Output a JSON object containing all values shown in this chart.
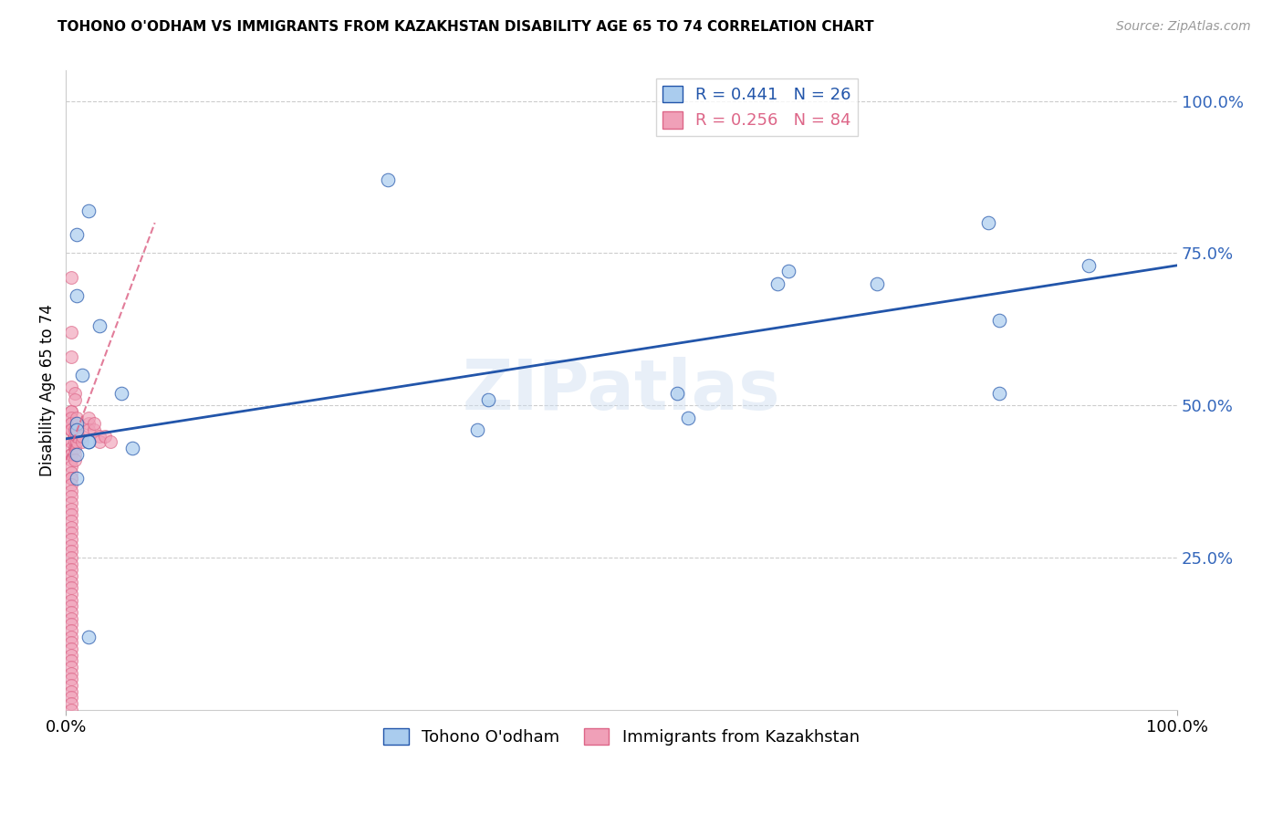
{
  "title": "TOHONO O'ODHAM VS IMMIGRANTS FROM KAZAKHSTAN DISABILITY AGE 65 TO 74 CORRELATION CHART",
  "source": "Source: ZipAtlas.com",
  "ylabel": "Disability Age 65 to 74",
  "y_tick_positions_right": [
    1.0,
    0.75,
    0.5,
    0.25
  ],
  "xlim": [
    0.0,
    1.0
  ],
  "ylim": [
    0.0,
    1.05
  ],
  "color_blue": "#aaccee",
  "color_pink": "#f0a0b8",
  "line_blue": "#2255aa",
  "line_pink": "#dd6688",
  "watermark": "ZIPatlas",
  "tohono_x": [
    0.02,
    0.01,
    0.01,
    0.03,
    0.015,
    0.05,
    0.01,
    0.29,
    0.38,
    0.56,
    0.64,
    0.73,
    0.83,
    0.92,
    0.84,
    0.65,
    0.55,
    0.84,
    0.02,
    0.37,
    0.02,
    0.06,
    0.01,
    0.01,
    0.01,
    0.02
  ],
  "tohono_y": [
    0.82,
    0.78,
    0.68,
    0.63,
    0.55,
    0.52,
    0.47,
    0.87,
    0.51,
    0.48,
    0.7,
    0.7,
    0.8,
    0.73,
    0.64,
    0.72,
    0.52,
    0.52,
    0.44,
    0.46,
    0.44,
    0.43,
    0.46,
    0.42,
    0.38,
    0.12
  ],
  "kaz_x": [
    0.005,
    0.005,
    0.005,
    0.005,
    0.005,
    0.005,
    0.005,
    0.005,
    0.005,
    0.005,
    0.005,
    0.005,
    0.005,
    0.005,
    0.005,
    0.005,
    0.005,
    0.005,
    0.005,
    0.005,
    0.005,
    0.005,
    0.005,
    0.005,
    0.005,
    0.005,
    0.005,
    0.005,
    0.005,
    0.005,
    0.005,
    0.005,
    0.005,
    0.005,
    0.005,
    0.005,
    0.005,
    0.005,
    0.005,
    0.005,
    0.005,
    0.005,
    0.005,
    0.005,
    0.005,
    0.005,
    0.005,
    0.005,
    0.005,
    0.005,
    0.005,
    0.005,
    0.005,
    0.005,
    0.005,
    0.005,
    0.005,
    0.005,
    0.005,
    0.005,
    0.008,
    0.008,
    0.008,
    0.008,
    0.008,
    0.008,
    0.008,
    0.008,
    0.01,
    0.01,
    0.01,
    0.01,
    0.01,
    0.015,
    0.015,
    0.02,
    0.02,
    0.02,
    0.025,
    0.025,
    0.03,
    0.03,
    0.035,
    0.04
  ],
  "kaz_y": [
    0.71,
    0.62,
    0.58,
    0.53,
    0.49,
    0.47,
    0.46,
    0.46,
    0.44,
    0.44,
    0.43,
    0.42,
    0.42,
    0.41,
    0.4,
    0.39,
    0.38,
    0.38,
    0.37,
    0.36,
    0.35,
    0.34,
    0.33,
    0.32,
    0.31,
    0.3,
    0.29,
    0.28,
    0.27,
    0.26,
    0.25,
    0.24,
    0.23,
    0.22,
    0.21,
    0.2,
    0.19,
    0.18,
    0.17,
    0.16,
    0.15,
    0.14,
    0.13,
    0.12,
    0.11,
    0.1,
    0.09,
    0.08,
    0.07,
    0.06,
    0.05,
    0.04,
    0.03,
    0.02,
    0.01,
    0.0,
    0.49,
    0.48,
    0.47,
    0.46,
    0.52,
    0.51,
    0.46,
    0.45,
    0.44,
    0.43,
    0.42,
    0.41,
    0.44,
    0.45,
    0.46,
    0.47,
    0.48,
    0.44,
    0.45,
    0.47,
    0.48,
    0.46,
    0.46,
    0.47,
    0.45,
    0.44,
    0.45,
    0.44
  ],
  "blue_line_x": [
    0.0,
    1.0
  ],
  "blue_line_y": [
    0.445,
    0.73
  ],
  "pink_line_x": [
    0.0,
    0.08
  ],
  "pink_line_y": [
    0.41,
    0.8
  ]
}
